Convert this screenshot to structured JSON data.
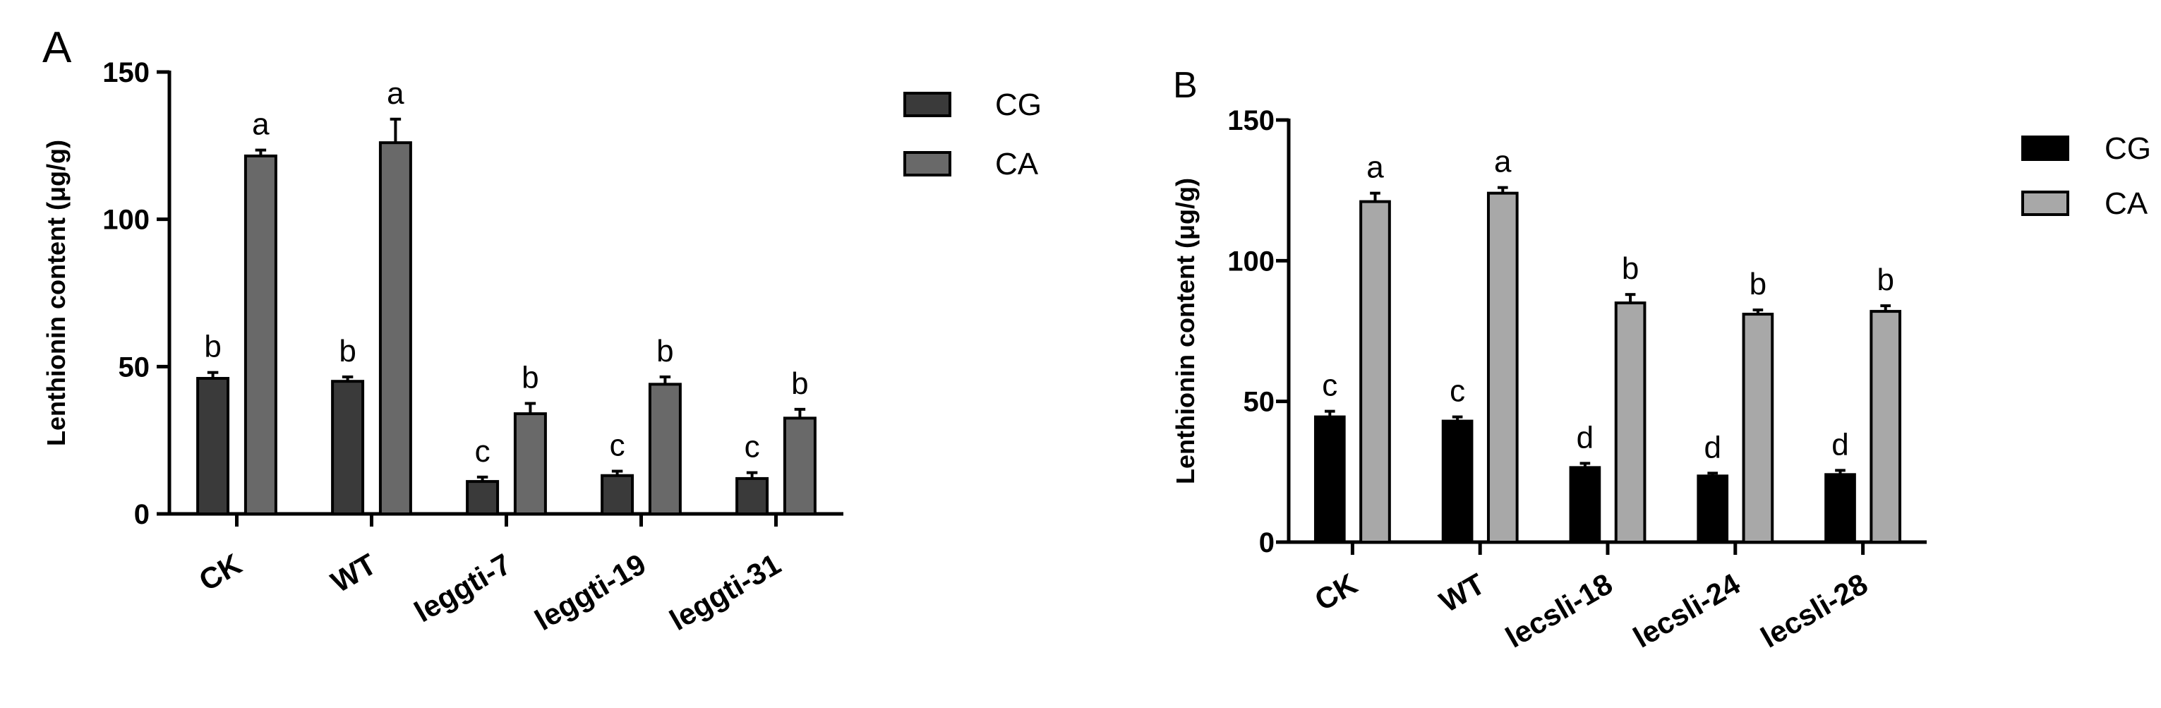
{
  "chart_data": [
    {
      "panel_label": "A",
      "type": "bar",
      "ylabel": "Lenthionin content (μg/g)",
      "xlabel": "",
      "ylim": [
        0,
        150
      ],
      "yticks": [
        0,
        50,
        100,
        150
      ],
      "categories": [
        "CK",
        "WT",
        "leggti-7",
        "leggti-19",
        "leggti-31"
      ],
      "series": [
        {
          "name": "CG",
          "color": "#3a3a3a",
          "values": [
            46,
            45,
            11,
            13,
            12
          ],
          "errors": [
            2,
            1.5,
            1.5,
            1.5,
            2
          ],
          "letters": [
            "b",
            "b",
            "c",
            "c",
            "c"
          ]
        },
        {
          "name": "CA",
          "color": "#696969",
          "values": [
            121.5,
            126,
            34,
            44,
            32.5
          ],
          "errors": [
            2,
            8,
            3.5,
            2.5,
            3
          ],
          "letters": [
            "a",
            "a",
            "b",
            "b",
            "b"
          ]
        }
      ],
      "legend": "top-right",
      "grid": false
    },
    {
      "panel_label": "B",
      "type": "bar",
      "ylabel": "Lenthionin content (μg/g)",
      "xlabel": "",
      "ylim": [
        0,
        150
      ],
      "yticks": [
        0,
        50,
        100,
        150
      ],
      "categories": [
        "CK",
        "WT",
        "lecsli-18",
        "lecsli-24",
        "lecsli-28"
      ],
      "series": [
        {
          "name": "CG",
          "color": "#000000",
          "values": [
            44.5,
            43,
            26.5,
            23.5,
            24
          ],
          "errors": [
            2,
            1.5,
            1.5,
            1,
            1.5
          ],
          "letters": [
            "c",
            "c",
            "d",
            "d",
            "d"
          ]
        },
        {
          "name": "CA",
          "color": "#a8a8a8",
          "values": [
            121,
            124,
            85,
            81,
            82
          ],
          "errors": [
            3,
            2,
            3,
            1.5,
            2
          ],
          "letters": [
            "a",
            "a",
            "b",
            "b",
            "b"
          ]
        }
      ],
      "legend": "top-right",
      "grid": false
    }
  ]
}
